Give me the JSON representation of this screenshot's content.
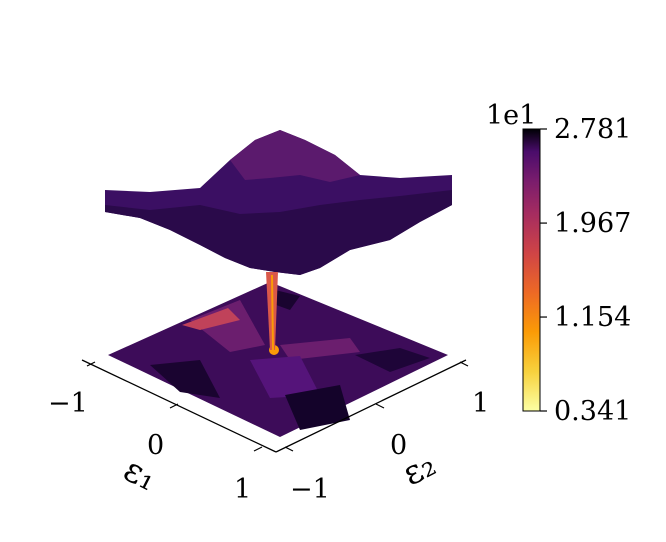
{
  "chart_data": {
    "type": "surface3d",
    "title": "",
    "colormap": "inferno_r",
    "colors": {
      "low": "#fcffa4",
      "mid_low": "#f98e09",
      "mid": "#bc3754",
      "mid_high": "#57106e",
      "high": "#000004"
    },
    "axes": {
      "x": {
        "label": "ε₁",
        "ticks": [
          "−1",
          "0",
          "1"
        ],
        "range": [
          -1,
          1
        ]
      },
      "y": {
        "label": "ε₂",
        "ticks": [
          "−1",
          "0",
          "1"
        ],
        "range": [
          -1,
          1
        ]
      }
    },
    "surface": {
      "plateau_value": 21,
      "ridge_value": 25,
      "peak_value": 27.81,
      "minimum_value": 3.41,
      "minimum_location": [
        0,
        0
      ]
    },
    "colorbar": {
      "multiplier_label": "1e1",
      "ticks": [
        {
          "label": "2.781",
          "value": 2.781
        },
        {
          "label": "1.967",
          "value": 1.967
        },
        {
          "label": "1.154",
          "value": 1.154
        },
        {
          "label": "0.341",
          "value": 0.341
        }
      ],
      "range": [
        0.341,
        2.781
      ]
    }
  }
}
